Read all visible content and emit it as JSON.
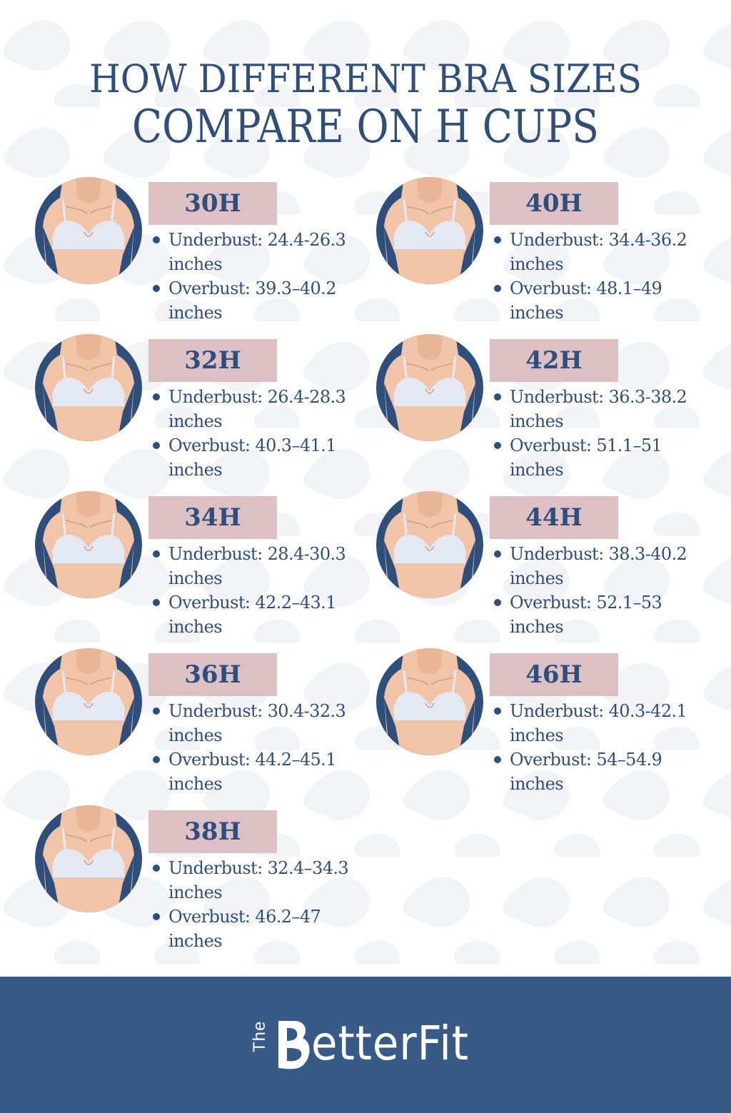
{
  "title": {
    "line1": "HOW DIFFERENT BRA SIZES",
    "line2": "COMPARE ON H CUPS"
  },
  "colors": {
    "navy": "#2e4e7c",
    "badge": "#dcc0c4",
    "footer": "#375b86",
    "skin": "#f1c4a8",
    "bra": "#e4e8f3"
  },
  "sizes": [
    {
      "label": "30H",
      "underbust": "Underbust: 24.4-26.3 inches",
      "overbust": "Overbust: 39.3–40.2 inches"
    },
    {
      "label": "32H",
      "underbust": "Underbust: 26.4-28.3 inches",
      "overbust": "Overbust: 40.3–41.1 inches"
    },
    {
      "label": "34H",
      "underbust": "Underbust: 28.4-30.3 inches",
      "overbust": "Overbust: 42.2–43.1 inches"
    },
    {
      "label": "36H",
      "underbust": "Underbust: 30.4-32.3 inches",
      "overbust": "Overbust: 44.2–45.1 inches"
    },
    {
      "label": "38H",
      "underbust": "Underbust: 32.4–34.3 inches",
      "overbust": "Overbust: 46.2–47 inches"
    },
    {
      "label": "40H",
      "underbust": "Underbust: 34.4-36.2 inches",
      "overbust": "Overbust: 48.1–49 inches"
    },
    {
      "label": "42H",
      "underbust": "Underbust: 36.3-38.2 inches",
      "overbust": "Overbust: 51.1–51 inches"
    },
    {
      "label": "44H",
      "underbust": "Underbust: 38.3-40.2 inches",
      "overbust": "Overbust: 52.1–53 inches"
    },
    {
      "label": "46H",
      "underbust": "Underbust: 40.3-42.1 inches",
      "overbust": "Overbust: 54–54.9 inches"
    }
  ],
  "footer": {
    "logo_prefix": "The",
    "logo_text": "etterFit"
  }
}
